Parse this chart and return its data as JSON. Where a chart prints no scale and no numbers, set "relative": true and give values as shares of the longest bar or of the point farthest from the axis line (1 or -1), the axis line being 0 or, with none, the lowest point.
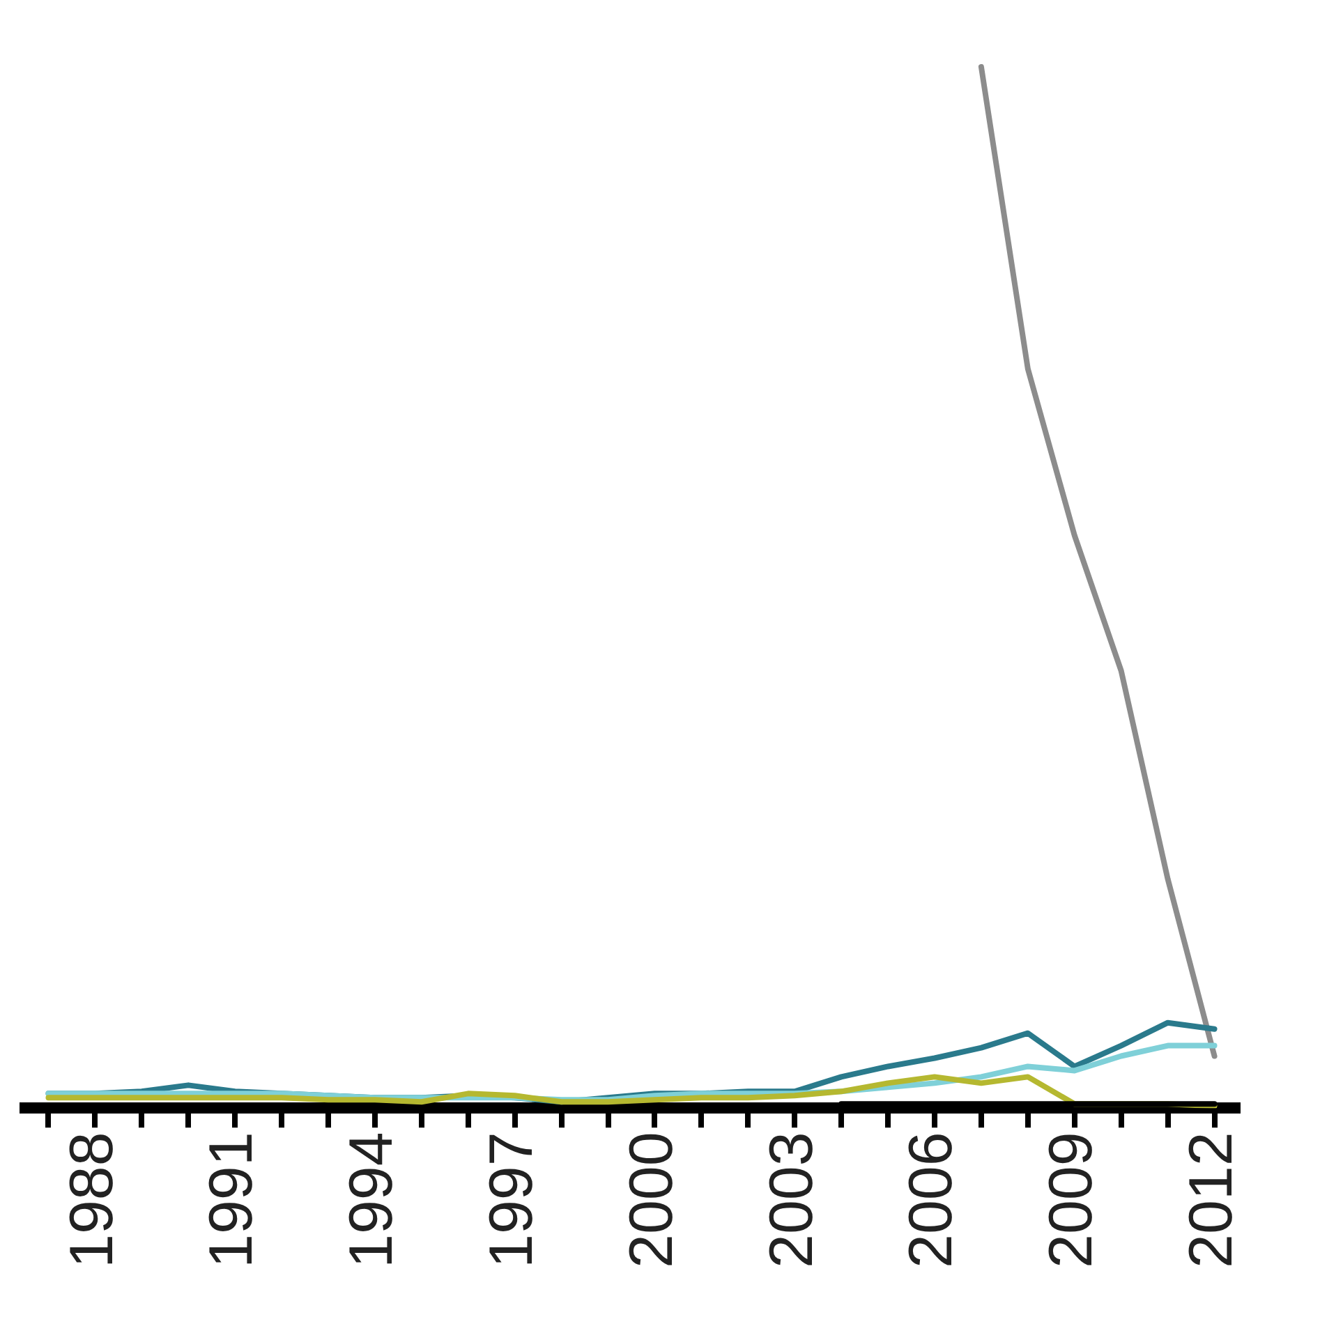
{
  "chart_data": {
    "type": "line",
    "relative": true,
    "grid": false,
    "legend": false,
    "marker": "none",
    "tick_labels": "x",
    "categories": [
      null,
      "1988",
      null,
      null,
      "1991",
      null,
      null,
      "1994",
      null,
      null,
      "1997",
      null,
      null,
      "2000",
      null,
      null,
      "2003",
      null,
      null,
      "2006",
      null,
      null,
      "2009",
      null,
      null,
      "2012"
    ],
    "series": [
      {
        "color": "#000000",
        "values": [
          null,
          null,
          null,
          null,
          null,
          null,
          null,
          null,
          null,
          null,
          null,
          null,
          null,
          null,
          null,
          null,
          null,
          0.004,
          0.004,
          0.004,
          0.004,
          0.004,
          0.004,
          0.004,
          0.004,
          0.004
        ]
      },
      {
        "color": "#b5b830",
        "values": [
          0.01,
          0.01,
          0.01,
          0.01,
          0.01,
          0.01,
          0.008,
          0.008,
          0.006,
          0.014,
          0.012,
          0.006,
          0.006,
          0.008,
          0.01,
          0.01,
          0.012,
          0.016,
          0.024,
          0.03,
          0.024,
          0.03,
          0.004,
          0.004,
          0.004,
          0.002
        ]
      },
      {
        "color": "#7fd0d8",
        "values": [
          0.014,
          0.014,
          0.014,
          0.014,
          0.014,
          0.014,
          0.012,
          0.01,
          0.01,
          0.01,
          0.01,
          0.008,
          0.008,
          0.012,
          0.014,
          0.014,
          0.014,
          0.016,
          0.02,
          0.024,
          0.03,
          0.04,
          0.036,
          0.05,
          0.06,
          0.06
        ]
      },
      {
        "color": "#2a7a8c",
        "values": [
          0.014,
          0.014,
          0.016,
          0.022,
          0.016,
          0.014,
          0.012,
          0.01,
          0.01,
          0.012,
          0.01,
          0.006,
          0.01,
          0.014,
          0.014,
          0.016,
          0.016,
          0.03,
          0.04,
          0.048,
          0.058,
          0.072,
          0.04,
          0.06,
          0.082,
          0.076
        ]
      },
      {
        "color": "#8c8c8c",
        "values": [
          null,
          null,
          null,
          null,
          null,
          null,
          null,
          null,
          null,
          null,
          null,
          null,
          null,
          null,
          null,
          null,
          null,
          null,
          null,
          null,
          1,
          0.71,
          0.55,
          0.42,
          0.22,
          0.05
        ]
      }
    ]
  }
}
